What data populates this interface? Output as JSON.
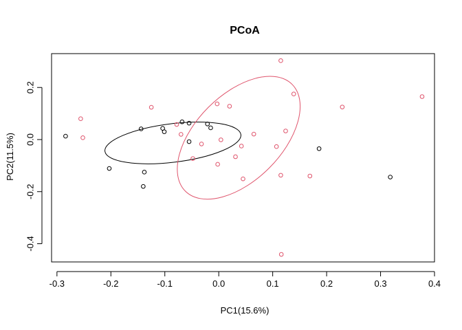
{
  "chart_data": {
    "type": "scatter",
    "title": "PCoA",
    "xlabel": "PC1(15.6%)",
    "ylabel": "PC2(11.5%)",
    "xlim": [
      -0.31,
      0.4
    ],
    "ylim": [
      -0.47,
      0.33
    ],
    "xticks": [
      -0.3,
      -0.2,
      -0.1,
      0.0,
      0.1,
      0.2,
      0.3,
      0.4
    ],
    "xtick_labels": [
      "-0.3",
      "-0.2",
      "-0.1",
      "0.0",
      "0.1",
      "0.2",
      "0.3",
      "0.4"
    ],
    "yticks": [
      -0.4,
      -0.2,
      0.0,
      0.2
    ],
    "ytick_labels": [
      "-0.4",
      "-0.2",
      "0.0",
      "0.2"
    ],
    "grid": false,
    "series": [
      {
        "color": "#000000",
        "points": [
          [
            -0.284,
            0.013
          ],
          [
            -0.203,
            -0.111
          ],
          [
            -0.144,
            0.041
          ],
          [
            -0.14,
            -0.18
          ],
          [
            -0.138,
            -0.125
          ],
          [
            -0.104,
            0.043
          ],
          [
            -0.101,
            0.03
          ],
          [
            -0.068,
            0.068
          ],
          [
            -0.055,
            0.063
          ],
          [
            -0.055,
            -0.008
          ],
          [
            -0.021,
            0.06
          ],
          [
            -0.015,
            0.045
          ],
          [
            0.186,
            -0.035
          ],
          [
            0.318,
            -0.144
          ]
        ],
        "ellipse": {
          "cx": -0.085,
          "cy": -0.013,
          "rx": 0.127,
          "ry": 0.074,
          "angle_deg": -7
        }
      },
      {
        "color": "#DF536B",
        "points": [
          [
            -0.256,
            0.08
          ],
          [
            -0.252,
            0.007
          ],
          [
            -0.125,
            0.124
          ],
          [
            -0.078,
            0.058
          ],
          [
            -0.07,
            0.02
          ],
          [
            -0.048,
            -0.073
          ],
          [
            -0.032,
            -0.017
          ],
          [
            -0.003,
            0.137
          ],
          [
            -0.002,
            -0.095
          ],
          [
            0.004,
            -0.001
          ],
          [
            0.02,
            0.128
          ],
          [
            0.031,
            -0.066
          ],
          [
            0.042,
            -0.025
          ],
          [
            0.045,
            -0.151
          ],
          [
            0.065,
            0.021
          ],
          [
            0.107,
            -0.027
          ],
          [
            0.115,
            0.303
          ],
          [
            0.115,
            -0.137
          ],
          [
            0.116,
            -0.441
          ],
          [
            0.124,
            0.033
          ],
          [
            0.139,
            0.175
          ],
          [
            0.169,
            -0.14
          ],
          [
            0.229,
            0.125
          ],
          [
            0.377,
            0.165
          ]
        ],
        "ellipse": {
          "cx": 0.037,
          "cy": 0.007,
          "rx": 0.14,
          "ry": 0.165,
          "angle_deg": -45
        }
      }
    ]
  }
}
